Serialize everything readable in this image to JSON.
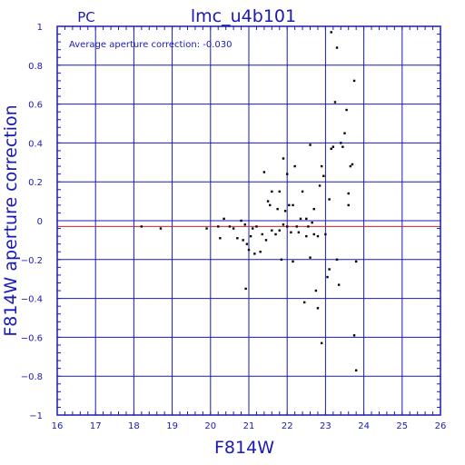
{
  "chart_data": {
    "type": "scatter",
    "title": "lmc_u4b101",
    "corner_label": "PC",
    "annotation": "Average aperture correction:  -0.030",
    "xlabel": "F814W",
    "ylabel": "F814W aperture correction",
    "xlim": [
      16,
      26
    ],
    "ylim": [
      -1,
      1
    ],
    "x_ticks": [
      16,
      17,
      18,
      19,
      20,
      21,
      22,
      23,
      24,
      25,
      26
    ],
    "y_ticks": [
      -1,
      -0.8,
      -0.6,
      -0.4,
      -0.2,
      0,
      0.2,
      0.4,
      0.6,
      0.8,
      1
    ],
    "y_tick_labels": [
      "−1",
      "−0.8",
      "−0.6",
      "−0.4",
      "−0.2",
      "0",
      "0.2",
      "0.4",
      "0.6",
      "0.8",
      "1"
    ],
    "grid": true,
    "reference_lines": [
      {
        "y": 0,
        "color": "#1a1ab4"
      },
      {
        "y": -0.03,
        "color": "#d22020"
      }
    ],
    "colors": {
      "axes": "#1a1ab4",
      "points": "#000000",
      "mean_line": "#d22020"
    },
    "points": [
      [
        18.2,
        -0.03
      ],
      [
        18.7,
        -0.04
      ],
      [
        19.9,
        -0.04
      ],
      [
        20.2,
        -0.03
      ],
      [
        20.25,
        -0.09
      ],
      [
        20.35,
        0.01
      ],
      [
        20.5,
        -0.03
      ],
      [
        20.6,
        -0.04
      ],
      [
        20.7,
        -0.09
      ],
      [
        20.8,
        0.0
      ],
      [
        20.85,
        -0.1
      ],
      [
        20.9,
        -0.02
      ],
      [
        20.92,
        -0.35
      ],
      [
        20.95,
        -0.12
      ],
      [
        21.0,
        -0.15
      ],
      [
        21.05,
        -0.08
      ],
      [
        21.1,
        -0.04
      ],
      [
        21.15,
        -0.17
      ],
      [
        21.2,
        -0.03
      ],
      [
        21.3,
        -0.16
      ],
      [
        21.35,
        -0.07
      ],
      [
        21.4,
        0.25
      ],
      [
        21.45,
        -0.1
      ],
      [
        21.5,
        0.1
      ],
      [
        21.55,
        0.08
      ],
      [
        21.6,
        -0.05
      ],
      [
        21.6,
        0.15
      ],
      [
        21.7,
        -0.07
      ],
      [
        21.75,
        0.06
      ],
      [
        21.8,
        0.15
      ],
      [
        21.8,
        -0.05
      ],
      [
        21.85,
        -0.2
      ],
      [
        21.9,
        0.32
      ],
      [
        21.9,
        -0.02
      ],
      [
        21.95,
        0.05
      ],
      [
        22.0,
        0.24
      ],
      [
        22.0,
        -0.03
      ],
      [
        22.05,
        0.08
      ],
      [
        22.1,
        -0.06
      ],
      [
        22.15,
        0.08
      ],
      [
        22.15,
        -0.21
      ],
      [
        22.2,
        0.28
      ],
      [
        22.25,
        -0.03
      ],
      [
        22.3,
        -0.06
      ],
      [
        22.35,
        0.01
      ],
      [
        22.4,
        0.15
      ],
      [
        22.45,
        -0.42
      ],
      [
        22.5,
        -0.08
      ],
      [
        22.5,
        0.01
      ],
      [
        22.55,
        -0.03
      ],
      [
        22.6,
        0.39
      ],
      [
        22.6,
        -0.19
      ],
      [
        22.65,
        -0.01
      ],
      [
        22.7,
        -0.07
      ],
      [
        22.7,
        0.06
      ],
      [
        22.75,
        -0.36
      ],
      [
        22.8,
        -0.45
      ],
      [
        22.8,
        -0.08
      ],
      [
        22.85,
        0.18
      ],
      [
        22.9,
        0.28
      ],
      [
        22.9,
        -0.63
      ],
      [
        22.95,
        0.23
      ],
      [
        23.0,
        -0.07
      ],
      [
        23.05,
        -0.29
      ],
      [
        23.1,
        0.11
      ],
      [
        23.1,
        -0.25
      ],
      [
        23.15,
        0.97
      ],
      [
        23.15,
        0.37
      ],
      [
        23.2,
        0.38
      ],
      [
        23.25,
        0.61
      ],
      [
        23.3,
        0.89
      ],
      [
        23.3,
        -0.2
      ],
      [
        23.35,
        -0.33
      ],
      [
        23.4,
        0.4
      ],
      [
        23.45,
        0.38
      ],
      [
        23.5,
        0.45
      ],
      [
        23.55,
        0.57
      ],
      [
        23.6,
        0.08
      ],
      [
        23.6,
        0.14
      ],
      [
        23.65,
        0.28
      ],
      [
        23.7,
        0.29
      ],
      [
        23.75,
        0.72
      ],
      [
        23.75,
        -0.59
      ],
      [
        23.8,
        -0.77
      ],
      [
        23.8,
        -0.21
      ]
    ]
  }
}
